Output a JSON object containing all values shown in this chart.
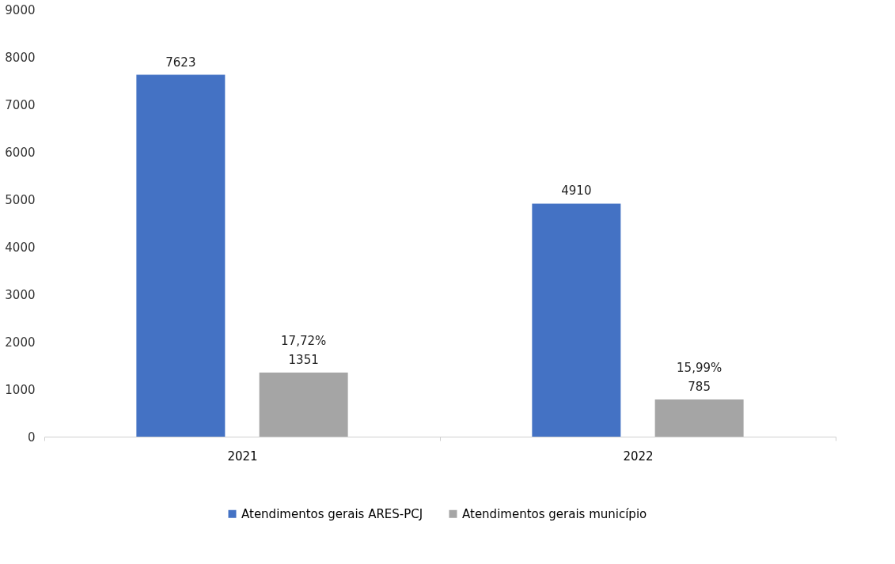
{
  "chart_data": {
    "type": "bar",
    "categories": [
      "2021",
      "2022"
    ],
    "series": [
      {
        "name": "Atendimentos gerais ARES-PCJ",
        "color": "#4472c4",
        "values": [
          7623,
          4910
        ],
        "value_labels": [
          "7623",
          "4910"
        ]
      },
      {
        "name": "Atendimentos gerais município",
        "color": "#a5a5a5",
        "values": [
          1351,
          785
        ],
        "value_labels": [
          "17,72%\n1351",
          "15,99%\n785"
        ]
      }
    ],
    "ylim": [
      0,
      9000
    ],
    "yticks": [
      0,
      1000,
      2000,
      3000,
      4000,
      5000,
      6000,
      7000,
      8000,
      9000
    ],
    "grid": false,
    "legend": "bottom"
  }
}
